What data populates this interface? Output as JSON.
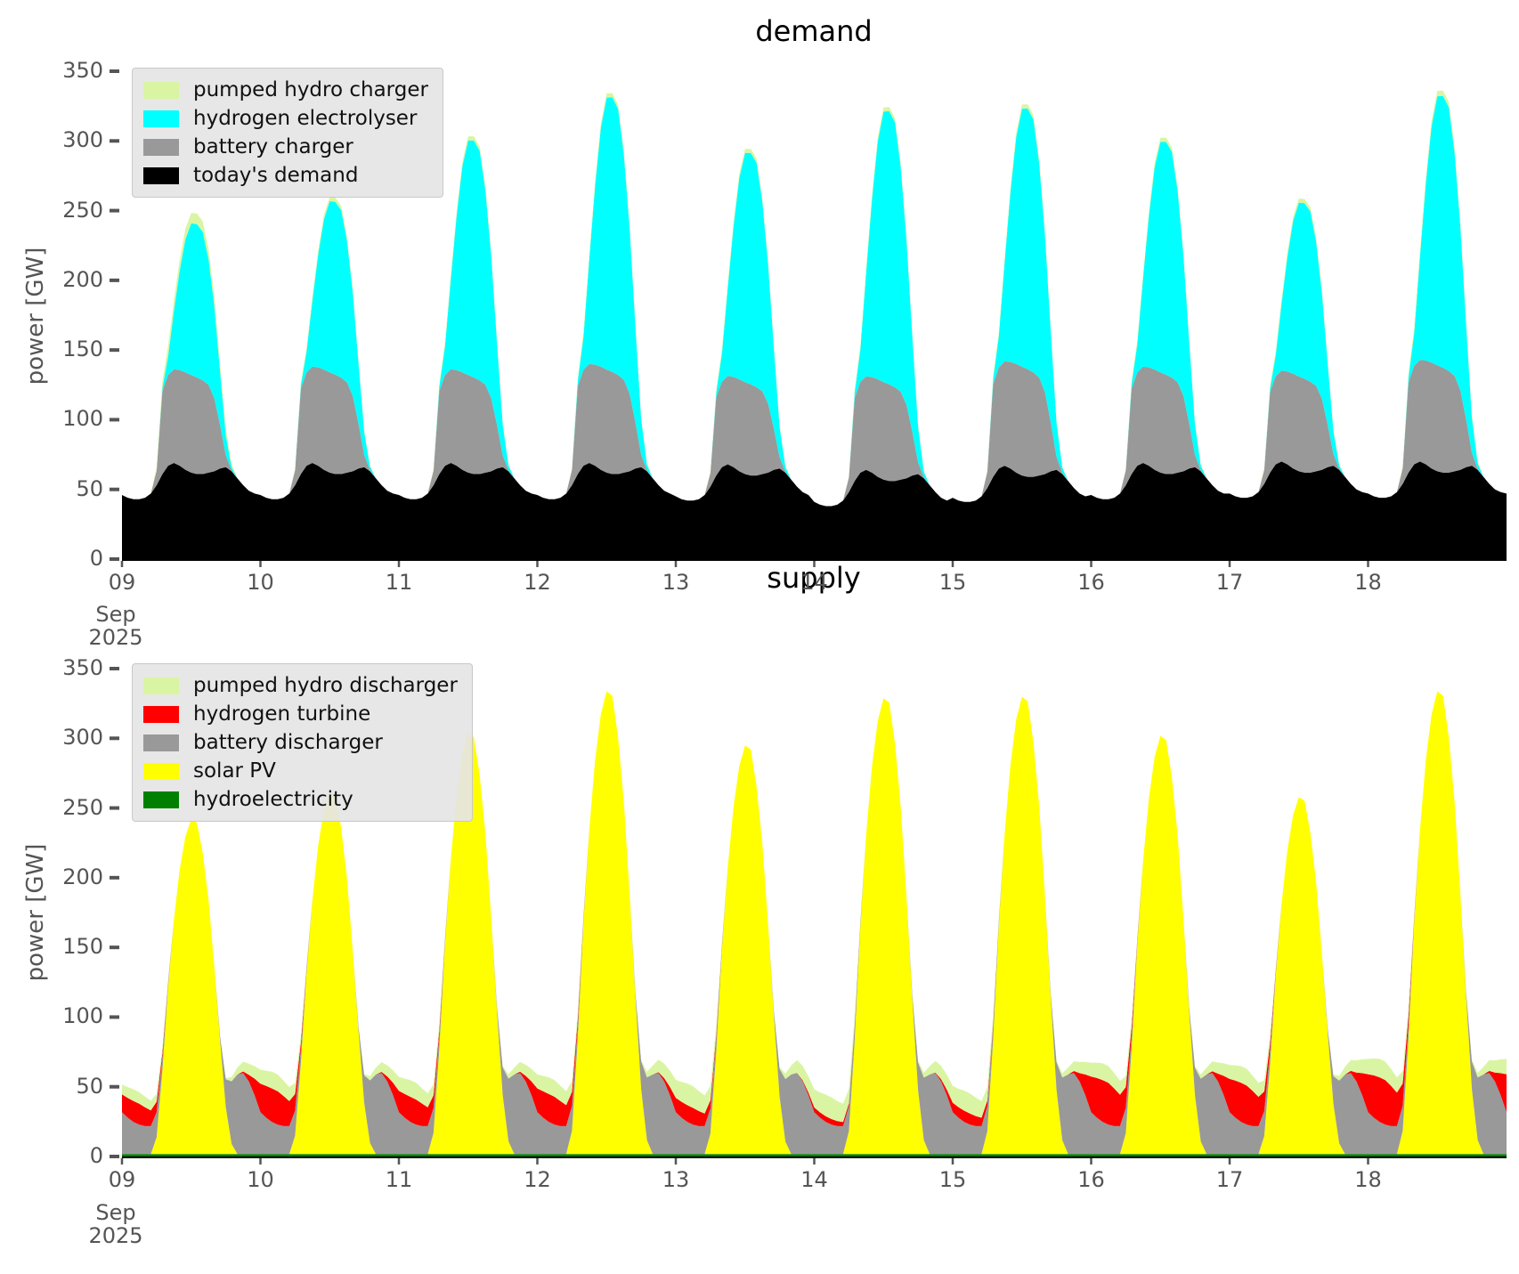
{
  "colors": {
    "pale_green": "#d9f5a3",
    "cyan": "#00ffff",
    "gray": "#999999",
    "black": "#000000",
    "red": "#ff0000",
    "yellow": "#ffff00",
    "dark_green": "#008000",
    "tick_label": "#555555",
    "axis_line": "#000000",
    "legend_bg": "#e5e5e5",
    "legend_border": "#c8c8c8"
  },
  "y_axis": {
    "label": "power [GW]",
    "tick_values": [
      0,
      50,
      100,
      150,
      200,
      250,
      300,
      350
    ],
    "tick_labels": [
      "0",
      "50",
      "100",
      "150",
      "200",
      "250",
      "300",
      "350"
    ]
  },
  "x_axis": {
    "tick_labels": [
      "09",
      "10",
      "11",
      "12",
      "13",
      "14",
      "15",
      "16",
      "17",
      "18"
    ],
    "offset_line1": "Sep",
    "offset_line2": "2025"
  },
  "demand_chart": {
    "title": "demand",
    "legend": [
      {
        "label": "pumped hydro charger",
        "color": "#d9f5a3"
      },
      {
        "label": "hydrogen electrolyser",
        "color": "#00ffff"
      },
      {
        "label": "battery charger",
        "color": "#999999"
      },
      {
        "label": "today's demand",
        "color": "#000000"
      }
    ]
  },
  "supply_chart": {
    "title": "supply",
    "legend": [
      {
        "label": "pumped hydro discharger",
        "color": "#d9f5a3"
      },
      {
        "label": "hydrogen turbine",
        "color": "#ff0000"
      },
      {
        "label": "battery discharger",
        "color": "#999999"
      },
      {
        "label": "solar PV",
        "color": "#ffff00"
      },
      {
        "label": "hydroelectricity",
        "color": "#008000"
      }
    ]
  },
  "chart_data": [
    {
      "name": "demand",
      "type": "area",
      "stacked": true,
      "x_start": "2025-09-09 00:00",
      "x_days": 10,
      "resolution_hours": 1,
      "ylim": [
        0,
        350
      ],
      "ylabel": "power [GW]",
      "x_tick_labels": [
        "09",
        "10",
        "11",
        "12",
        "13",
        "14",
        "15",
        "16",
        "17",
        "18"
      ],
      "legend_position": "upper left",
      "day_peak_totals_gw": [
        245,
        261,
        305,
        336,
        297,
        331,
        330,
        304,
        259,
        336
      ],
      "series": [
        {
          "name": "today's demand",
          "color": "#000000",
          "profile_gw": [
            46,
            44,
            43,
            43,
            44,
            47,
            53,
            61,
            67,
            69,
            67,
            64,
            62,
            61,
            61,
            62,
            63,
            65,
            66,
            63,
            58,
            53,
            49,
            47
          ],
          "day_offsets_gw": [
            0,
            0,
            0,
            0,
            -1,
            -5,
            -2,
            0,
            1,
            1
          ]
        },
        {
          "name": "battery charger",
          "color": "#999999",
          "profile_frac": [
            0,
            0,
            0,
            0,
            0,
            0,
            0.15,
            0.85,
            0.93,
            0.96,
            0.98,
            1.0,
            1.0,
            0.99,
            0.96,
            0.9,
            0.75,
            0.45,
            0.12,
            0.01,
            0,
            0,
            0,
            0
          ],
          "day_peaks_gw": [
            70,
            72,
            70,
            74,
            66,
            70,
            78,
            72,
            68,
            76
          ]
        },
        {
          "name": "hydrogen electrolyser",
          "color": "#00ffff",
          "profile_frac": [
            0,
            0,
            0,
            0,
            0,
            0,
            0,
            0.02,
            0.12,
            0.38,
            0.65,
            0.87,
            0.99,
            1.0,
            0.97,
            0.82,
            0.6,
            0.35,
            0.13,
            0.02,
            0,
            0,
            0,
            0
          ],
          "day_peaks_gw": [
            110,
            124,
            170,
            197,
            166,
            196,
            187,
            167,
            126,
            195
          ]
        },
        {
          "name": "pumped hydro charger",
          "color": "#d9f5a3",
          "profile_gw": [
            0,
            0,
            0,
            0,
            0,
            0,
            1,
            2,
            3,
            3,
            3,
            3,
            3,
            3,
            3,
            3,
            3,
            2,
            2,
            1,
            0,
            0,
            0,
            0
          ],
          "day_multipliers": [
            2.5,
            1,
            1,
            1,
            1,
            1,
            1,
            1,
            1,
            1.3
          ]
        }
      ]
    },
    {
      "name": "supply",
      "type": "area",
      "stacked": true,
      "x_start": "2025-09-09 00:00",
      "x_days": 10,
      "resolution_hours": 1,
      "ylim": [
        0,
        350
      ],
      "ylabel": "power [GW]",
      "x_tick_labels": [
        "09",
        "10",
        "11",
        "12",
        "13",
        "14",
        "15",
        "16",
        "17",
        "18"
      ],
      "legend_position": "upper left",
      "day_peak_totals_gw": [
        242,
        262,
        304,
        334,
        295,
        329,
        330,
        302,
        258,
        334
      ],
      "series": [
        {
          "name": "hydroelectricity",
          "color": "#008000",
          "constant_gw": 1.8
        },
        {
          "name": "solar PV",
          "color": "#ffff00",
          "profile_frac": [
            0,
            0,
            0,
            0,
            0,
            0,
            0.05,
            0.25,
            0.5,
            0.7,
            0.85,
            0.95,
            1.0,
            0.99,
            0.9,
            0.76,
            0.56,
            0.34,
            0.14,
            0.03,
            0,
            0,
            0,
            0
          ],
          "day_peaks_gw": [
            240,
            260,
            302,
            332,
            293,
            327,
            328,
            300,
            256,
            332
          ]
        },
        {
          "name": "battery discharger",
          "color": "#999999",
          "profile_gw": [
            30,
            26,
            23,
            21,
            20,
            20,
            18,
            10,
            3,
            0,
            0,
            0,
            0,
            0,
            0,
            0,
            0,
            3,
            20,
            45,
            57,
            58,
            52,
            42
          ]
        },
        {
          "name": "hydrogen turbine",
          "color": "#ff0000",
          "profile_frac": [
            0.85,
            0.95,
            1.0,
            1.0,
            0.9,
            0.75,
            0.5,
            0.2,
            0.03,
            0,
            0,
            0,
            0,
            0,
            0,
            0,
            0,
            0,
            0,
            0,
            0,
            0.05,
            0.2,
            0.5
          ],
          "day_peaks_gw": [
            15,
            24,
            18,
            20,
            12,
            4,
            8,
            30,
            28,
            32
          ],
          "evening_next_day_from_hour": 21
        },
        {
          "name": "pumped hydro discharger",
          "color": "#d9f5a3",
          "profile_gw": [
            10,
            11,
            12,
            12,
            11,
            10,
            8,
            5,
            1,
            0,
            0,
            0,
            0,
            0,
            0,
            0,
            0,
            0,
            1,
            3,
            5,
            7,
            8,
            9
          ],
          "day_multipliers": [
            0.7,
            1,
            1,
            1,
            1.3,
            1.3,
            1.2,
            1,
            1,
            1.1
          ],
          "evening_next_day_from_hour": 18
        }
      ]
    }
  ]
}
